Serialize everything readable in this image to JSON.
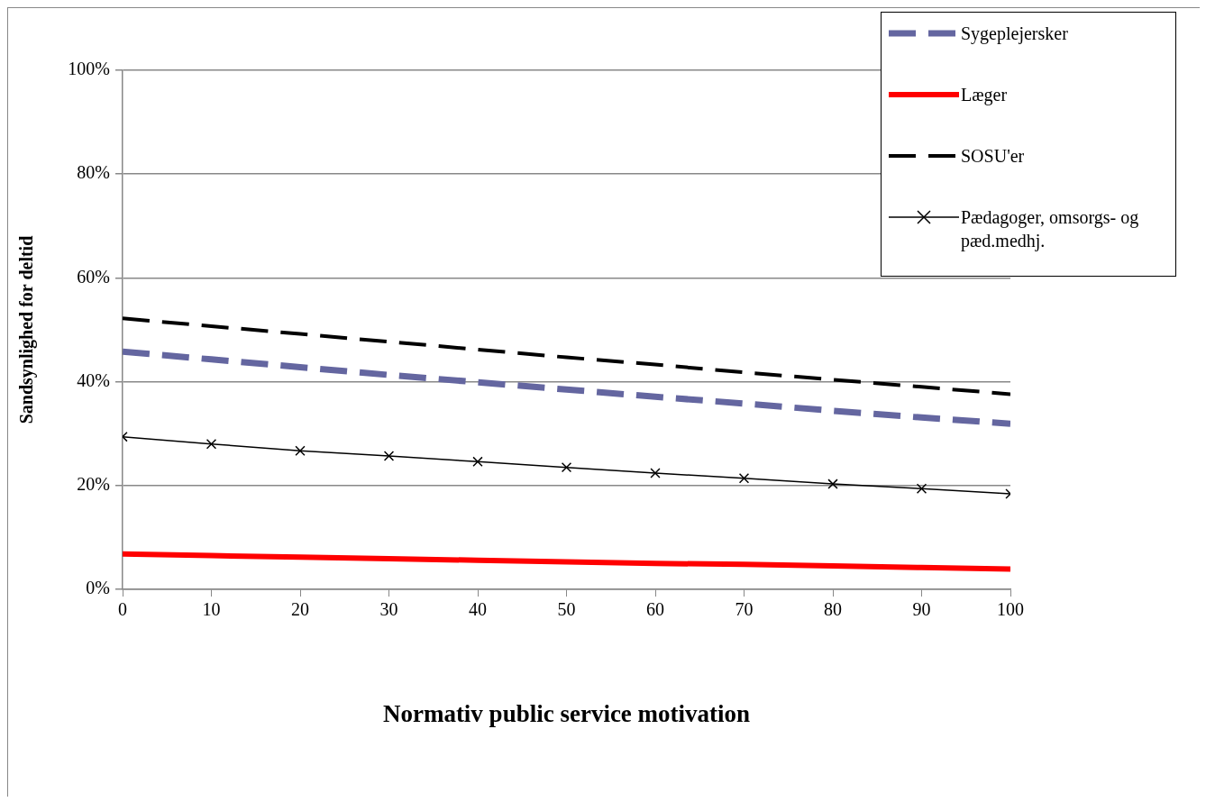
{
  "chart_data": {
    "type": "line",
    "xlabel": "Normativ public service motivation",
    "ylabel": "Sandsynlighed for deltid",
    "x": [
      0,
      10,
      20,
      30,
      40,
      50,
      60,
      70,
      80,
      90,
      100
    ],
    "xlim": [
      0,
      100
    ],
    "xticks": [
      0,
      10,
      20,
      30,
      40,
      50,
      60,
      70,
      80,
      90,
      100
    ],
    "ylim": [
      0,
      100
    ],
    "yticks": [
      {
        "value": 0,
        "label": "0%"
      },
      {
        "value": 20,
        "label": "20%"
      },
      {
        "value": 40,
        "label": "40%"
      },
      {
        "value": 60,
        "label": "60%"
      },
      {
        "value": 80,
        "label": "80%"
      },
      {
        "value": 100,
        "label": "100%"
      }
    ],
    "grid": "y",
    "legend": "top right",
    "series": [
      {
        "name": "Sygeplejersker",
        "color": "#6466a0",
        "line_style": "dashed",
        "marker": "none",
        "values": [
          45.8,
          44.3,
          42.8,
          41.3,
          39.9,
          38.5,
          37.1,
          35.8,
          34.4,
          33.1,
          31.9
        ]
      },
      {
        "name": "Læger",
        "color": "#ff0000",
        "line_style": "solid",
        "marker": "none",
        "values": [
          6.8,
          6.5,
          6.2,
          5.9,
          5.6,
          5.3,
          5.0,
          4.8,
          4.5,
          4.2,
          3.9
        ]
      },
      {
        "name": "SOSU'er",
        "color": "#000000",
        "line_style": "dashed",
        "marker": "none",
        "values": [
          52.2,
          50.7,
          49.2,
          47.7,
          46.2,
          44.7,
          43.3,
          41.8,
          40.4,
          39.0,
          37.6
        ]
      },
      {
        "name": "Pædagoger, omsorgs- og pæd.medhj.",
        "color": "#000000",
        "line_style": "solid",
        "marker": "cross",
        "values": [
          29.4,
          28.0,
          26.7,
          25.7,
          24.6,
          23.5,
          22.4,
          21.4,
          20.3,
          19.4,
          18.4
        ]
      }
    ]
  }
}
